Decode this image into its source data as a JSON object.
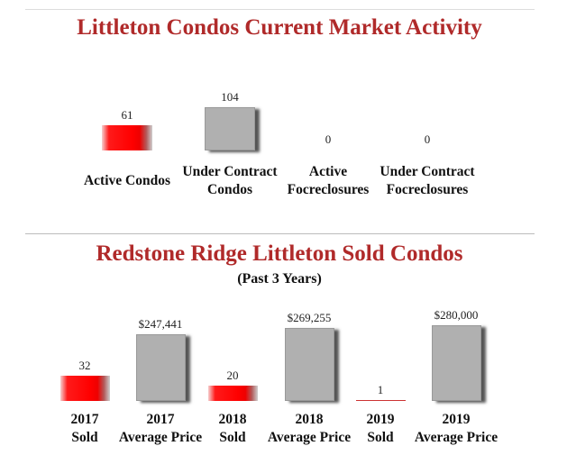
{
  "chart_data": [
    {
      "type": "bar",
      "title": "Littleton Condos Current Market Activity",
      "categories": [
        "Active Condos",
        "Under Contract\nCondos",
        "Active\nFocreclosures",
        "Under Contract\nFocreclosures"
      ],
      "values": [
        61,
        104,
        0,
        0
      ],
      "value_labels": [
        "61",
        "104",
        "0",
        "0"
      ],
      "colors": [
        "#ff0000",
        "#b0b0b0",
        "#b0b0b0",
        "#b0b0b0"
      ]
    },
    {
      "type": "bar",
      "title": "Redstone Ridge Littleton Sold Condos",
      "subtitle": "(Past 3 Years)",
      "categories": [
        "2017\nSold",
        "2017\nAverage Price",
        "2018\nSold",
        "2018\nAverage Price",
        "2019\nSold",
        "2019\nAverage Price"
      ],
      "values": [
        32,
        247441,
        20,
        269255,
        1,
        280000
      ],
      "value_labels": [
        "32",
        "$247,441",
        "20",
        "$269,255",
        "1",
        "$280,000"
      ],
      "colors": [
        "#ff0000",
        "#b0b0b0",
        "#ff0000",
        "#b0b0b0",
        "#ff0000",
        "#b0b0b0"
      ]
    }
  ]
}
